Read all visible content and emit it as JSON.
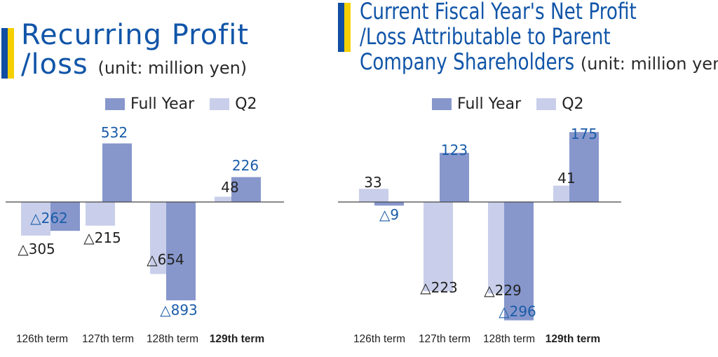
{
  "legend": {
    "full_label": "Full Year",
    "q2_label": "Q2"
  },
  "colors": {
    "full": "#8797cc",
    "q2": "#c9cfea",
    "full_text": "#1a5ca8",
    "q2_text": "#222222",
    "title": "#1155a8",
    "accent_blue": "#0f4ea3",
    "accent_yellow": "#f5d000"
  },
  "charts": [
    {
      "title_line1": "Recurring Profit",
      "title_line2": "/loss",
      "unit": "(unit: million yen)",
      "chart_data": {
        "type": "bar",
        "title": "Recurring Profit /loss",
        "categories": [
          "126th term",
          "127th term",
          "128th term",
          "129th term"
        ],
        "series": [
          {
            "name": "Full Year",
            "values": [
              -262,
              532,
              -893,
              226
            ],
            "labels": [
              "△262",
              "532",
              "△893",
              "226"
            ]
          },
          {
            "name": "Q2",
            "values": [
              -305,
              -215,
              -654,
              48
            ],
            "labels": [
              "△305",
              "△215",
              "△654",
              "48"
            ]
          }
        ],
        "highlight_category": "129th term",
        "unit": "million yen"
      }
    },
    {
      "title_line1": "Current Fiscal Year's Net Profit",
      "title_line2": "/Loss Attributable to Parent",
      "title_line3": "Company Shareholders",
      "unit": "(unit: million yen)",
      "chart_data": {
        "type": "bar",
        "title": "Current Fiscal Year's Net Profit /Loss Attributable to Parent Company Shareholders",
        "categories": [
          "126th term",
          "127th term",
          "128th term",
          "129th term"
        ],
        "series": [
          {
            "name": "Full Year",
            "values": [
              -9,
              123,
              -296,
              175
            ],
            "labels": [
              "△9",
              "123",
              "△296",
              "175"
            ]
          },
          {
            "name": "Q2",
            "values": [
              33,
              -223,
              -229,
              41
            ],
            "labels": [
              "33",
              "△223",
              "△229",
              "41"
            ]
          }
        ],
        "highlight_category": "129th term",
        "unit": "million yen"
      }
    }
  ]
}
